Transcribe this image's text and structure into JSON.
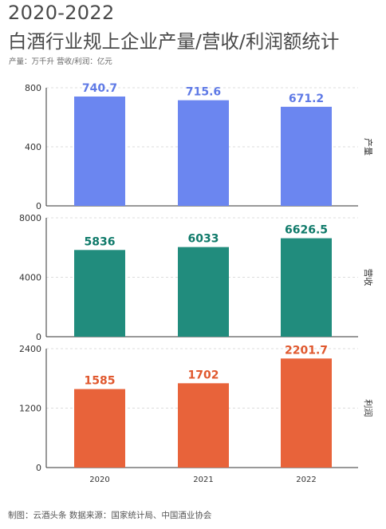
{
  "header": {
    "title_line1": "2020-2022",
    "title_line2": "白酒行业规上企业产量/营收/利润额统计",
    "units_note": "产量：万千升    营收/利润：亿元"
  },
  "footer": {
    "credits": "制图：云酒头条    数据来源：国家统计局、中国酒业协会"
  },
  "chart_data": {
    "type": "bar",
    "categories": [
      "2020",
      "2021",
      "2022"
    ],
    "panels": [
      {
        "name": "产量",
        "values": [
          740.7,
          715.6,
          671.2
        ],
        "labels": [
          "740.7",
          "715.6",
          "671.2"
        ],
        "yticks": [
          0,
          400,
          800
        ],
        "ylim": [
          0,
          800
        ],
        "color": "#6b86f0",
        "label_color": "#5f7ae6"
      },
      {
        "name": "营收",
        "values": [
          5836,
          6033,
          6626.5
        ],
        "labels": [
          "5836",
          "6033",
          "6626.5"
        ],
        "yticks": [
          0,
          4000,
          8000
        ],
        "ylim": [
          0,
          8000
        ],
        "color": "#218c7d",
        "label_color": "#0f7a6a"
      },
      {
        "name": "利润",
        "values": [
          1585,
          1702,
          2201.7
        ],
        "labels": [
          "1585",
          "1702",
          "2201.7"
        ],
        "yticks": [
          0,
          1200,
          2400
        ],
        "ylim": [
          0,
          2400
        ],
        "color": "#e8633a",
        "label_color": "#e0582e"
      }
    ],
    "grid": true
  }
}
